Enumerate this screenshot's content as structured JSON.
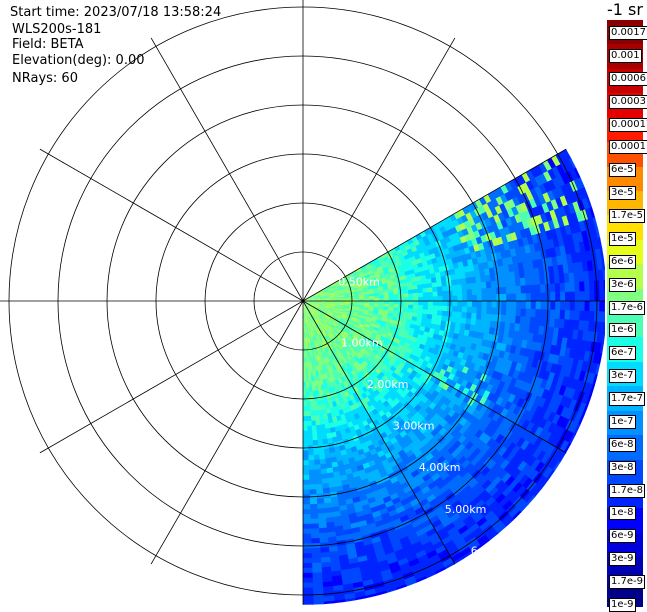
{
  "header": {
    "start_time": "Start time: 2023/07/18 13:58:24",
    "instrument": "WLS200s-181",
    "field": "Field: BETA",
    "elevation": "Elevation(deg): 0.00",
    "nrays": "NRays: 60"
  },
  "colorbar": {
    "title": "-1 sr",
    "colors": [
      "#8b0000",
      "#a80000",
      "#c80000",
      "#e40000",
      "#ff1a00",
      "#ff5000",
      "#ff8a00",
      "#ffb600",
      "#ffe000",
      "#e6ff1a",
      "#b3ff4c",
      "#80ff80",
      "#4dffb3",
      "#1affe6",
      "#00dcff",
      "#00b4ff",
      "#0090ff",
      "#006cff",
      "#0048ff",
      "#0024ff",
      "#0000ff",
      "#0000dc",
      "#0000b4",
      "#00008b"
    ],
    "labels": [
      "0.0017",
      "0.001",
      "0.0006",
      "0.0003",
      "0.00017",
      "0.0001",
      "6e-5",
      "3e-5",
      "1.7e-5",
      "1e-5",
      "6e-6",
      "3e-6",
      "1.7e-6",
      "1e-6",
      "6e-7",
      "3e-7",
      "1.7e-7",
      "1e-7",
      "6e-8",
      "3e-8",
      "1.7e-8",
      "1e-8",
      "6e-9",
      "3e-9",
      "1.7e-9",
      "1e-9"
    ]
  },
  "chart_data": {
    "type": "ppi-polar",
    "field": "BETA",
    "elevation_deg": 0.0,
    "n_rays": 60,
    "sector_azimuth_deg": [
      60,
      180
    ],
    "range_km": [
      0,
      6.2
    ],
    "range_ring_labels": [
      "1.00km",
      "2.00km",
      "3.00km",
      "4.00km",
      "5.00km",
      "6"
    ],
    "inner_ring_label": "0.50km",
    "ring_spacing_km": 1.0,
    "spoke_spacing_deg": 30,
    "grid": true,
    "profile": {
      "range_km": [
        0.2,
        0.5,
        1.0,
        1.5,
        2.0,
        2.5,
        3.0,
        3.5,
        4.0,
        4.5,
        5.0,
        5.5,
        6.0
      ],
      "beta": [
        2e-06,
        1.7e-06,
        1.5e-06,
        1.2e-06,
        8e-07,
        4e-07,
        2e-07,
        1.2e-07,
        7e-08,
        4e-08,
        2.5e-08,
        1.7e-08,
        1.2e-08
      ]
    },
    "features": [
      {
        "type": "enhanced-band",
        "azimuth_deg": [
          60,
          72
        ],
        "range_km": [
          3.4,
          6.0
        ],
        "beta": 2e-06
      },
      {
        "type": "enhanced-band",
        "azimuth_deg": [
          112,
          120
        ],
        "range_km": [
          2.8,
          4.2
        ],
        "beta": 8e-07
      }
    ]
  }
}
